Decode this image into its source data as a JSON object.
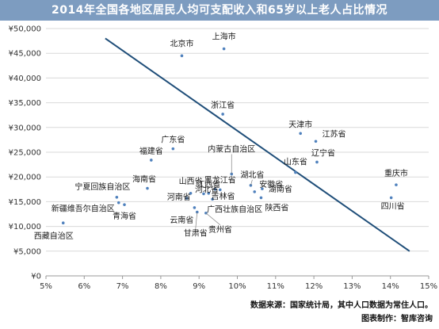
{
  "chart_data": {
    "type": "scatter",
    "title": "2014年全国各地区居民人均可支配收入和65岁以上老人占比情况",
    "xlabel": "",
    "ylabel": "",
    "xlim": [
      0.05,
      0.15
    ],
    "ylim": [
      0,
      50000
    ],
    "x_ticks": [
      "5%",
      "6%",
      "7%",
      "8%",
      "9%",
      "10%",
      "11%",
      "12%",
      "13%",
      "14%",
      "15%"
    ],
    "y_ticks": [
      "¥0",
      "¥5,000",
      "¥10,000",
      "¥15,000",
      "¥20,000",
      "¥25,000",
      "¥30,000",
      "¥35,000",
      "¥40,000",
      "¥45,000",
      "¥50,000"
    ],
    "grid": true,
    "point_color": "#4f81bd",
    "trend_line_color": "#1f4e79",
    "trend_line": {
      "x": [
        0.0655,
        0.145
      ],
      "y": [
        48000,
        5000
      ]
    },
    "points": [
      {
        "label": "北京市",
        "x": 0.0855,
        "y": 44500
      },
      {
        "label": "上海市",
        "x": 0.0965,
        "y": 45900
      },
      {
        "label": "浙江省",
        "x": 0.0962,
        "y": 32700
      },
      {
        "label": "天津市",
        "x": 0.1165,
        "y": 28800
      },
      {
        "label": "江苏省",
        "x": 0.1205,
        "y": 27200
      },
      {
        "label": "辽宁省",
        "x": 0.1208,
        "y": 23000
      },
      {
        "label": "广东省",
        "x": 0.0832,
        "y": 25700
      },
      {
        "label": "福建省",
        "x": 0.0775,
        "y": 23400
      },
      {
        "label": "内蒙古自治区",
        "x": 0.0985,
        "y": 20600
      },
      {
        "label": "山东省",
        "x": 0.1152,
        "y": 20900
      },
      {
        "label": "重庆市",
        "x": 0.1415,
        "y": 18400
      },
      {
        "label": "四川省",
        "x": 0.1402,
        "y": 15800
      },
      {
        "label": "海南省",
        "x": 0.0765,
        "y": 17700
      },
      {
        "label": "湖北省",
        "x": 0.1035,
        "y": 18300
      },
      {
        "label": "安徽省",
        "x": 0.1045,
        "y": 17000
      },
      {
        "label": "黑龙江省",
        "x": 0.0955,
        "y": 17400
      },
      {
        "label": "湖南省",
        "x": 0.1065,
        "y": 17600
      },
      {
        "label": "山西省",
        "x": 0.0878,
        "y": 16700
      },
      {
        "label": "江西省",
        "x": 0.0925,
        "y": 16700
      },
      {
        "label": "吉林省",
        "x": 0.0942,
        "y": 17500
      },
      {
        "label": "宁夏回族自治区",
        "x": 0.0685,
        "y": 15900
      },
      {
        "label": "河南省",
        "x": 0.0868,
        "y": 15700
      },
      {
        "label": "陕西省",
        "x": 0.1062,
        "y": 15800
      },
      {
        "label": "河北省",
        "x": 0.0912,
        "y": 16600
      },
      {
        "label": "新疆维吾尔自治区",
        "x": 0.069,
        "y": 14800
      },
      {
        "label": "青海省",
        "x": 0.0705,
        "y": 14400
      },
      {
        "label": "云南省",
        "x": 0.0888,
        "y": 13800
      },
      {
        "label": "广西壮族自治区",
        "x": 0.0935,
        "y": 15500
      },
      {
        "label": "贵州省",
        "x": 0.0918,
        "y": 12700
      },
      {
        "label": "甘肃省",
        "x": 0.0895,
        "y": 12900
      },
      {
        "label": "西藏自治区",
        "x": 0.0545,
        "y": 10700
      }
    ]
  },
  "footer": {
    "source": "数据来源：国家统计局，其中人口数据为常住人口。",
    "credit": "图表制作：智库咨询"
  }
}
